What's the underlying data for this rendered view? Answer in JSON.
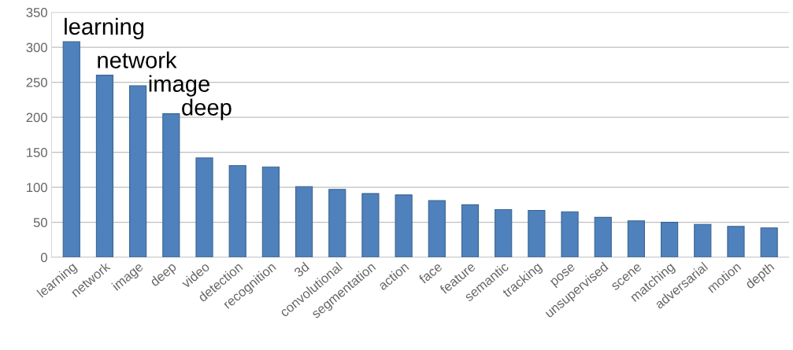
{
  "chart_data": {
    "type": "bar",
    "categories": [
      "learning",
      "network",
      "image",
      "deep",
      "video",
      "detection",
      "recognition",
      "3d",
      "convolutional",
      "segmentation",
      "action",
      "face",
      "feature",
      "semantic",
      "tracking",
      "pose",
      "unsupervised",
      "scene",
      "matching",
      "adversarial",
      "motion",
      "depth"
    ],
    "values": [
      308,
      260,
      245,
      205,
      142,
      131,
      129,
      101,
      97,
      91,
      89,
      81,
      75,
      68,
      67,
      65,
      57,
      52,
      50,
      47,
      44,
      42
    ],
    "color": "#4f81bd",
    "ylim": [
      0,
      350
    ],
    "yticks": [
      0,
      50,
      100,
      150,
      200,
      250,
      300,
      350
    ],
    "grid": "y",
    "annotations": [
      {
        "text": "learning",
        "x": "learning",
        "y": 308
      },
      {
        "text": "network",
        "x": "network",
        "y": 260
      },
      {
        "text": "image",
        "x": "image",
        "y": 245
      },
      {
        "text": "deep",
        "x": "deep",
        "y": 205
      }
    ]
  }
}
